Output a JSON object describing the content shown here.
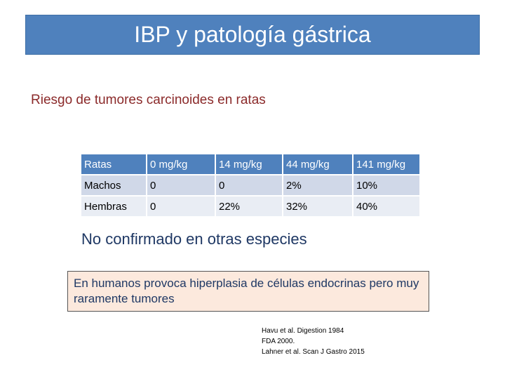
{
  "header": {
    "title": "IBP y patología gástrica"
  },
  "subtitle": "Riesgo de tumores carcinoides en ratas",
  "table": {
    "columns": [
      "Ratas",
      "0 mg/kg",
      "14 mg/kg",
      "44 mg/kg",
      "141 mg/kg"
    ],
    "rows": [
      [
        "Machos",
        "0",
        "0",
        "2%",
        "10%"
      ],
      [
        "Hembras",
        "0",
        "22%",
        "32%",
        "40%"
      ]
    ]
  },
  "note": "No confirmado en otras especies",
  "box_text": "En humanos provoca hiperplasia de células endocrinas pero muy raramente tumores",
  "references": [
    "Havu et al. Digestion 1984",
    "FDA 2000.",
    "Lahner et al. Scan J Gastro 2015"
  ],
  "colors": {
    "title_bar": "#4f81bd",
    "subtitle": "#8b2a2a",
    "note": "#1f3864",
    "box_background": "#fce9dd"
  }
}
